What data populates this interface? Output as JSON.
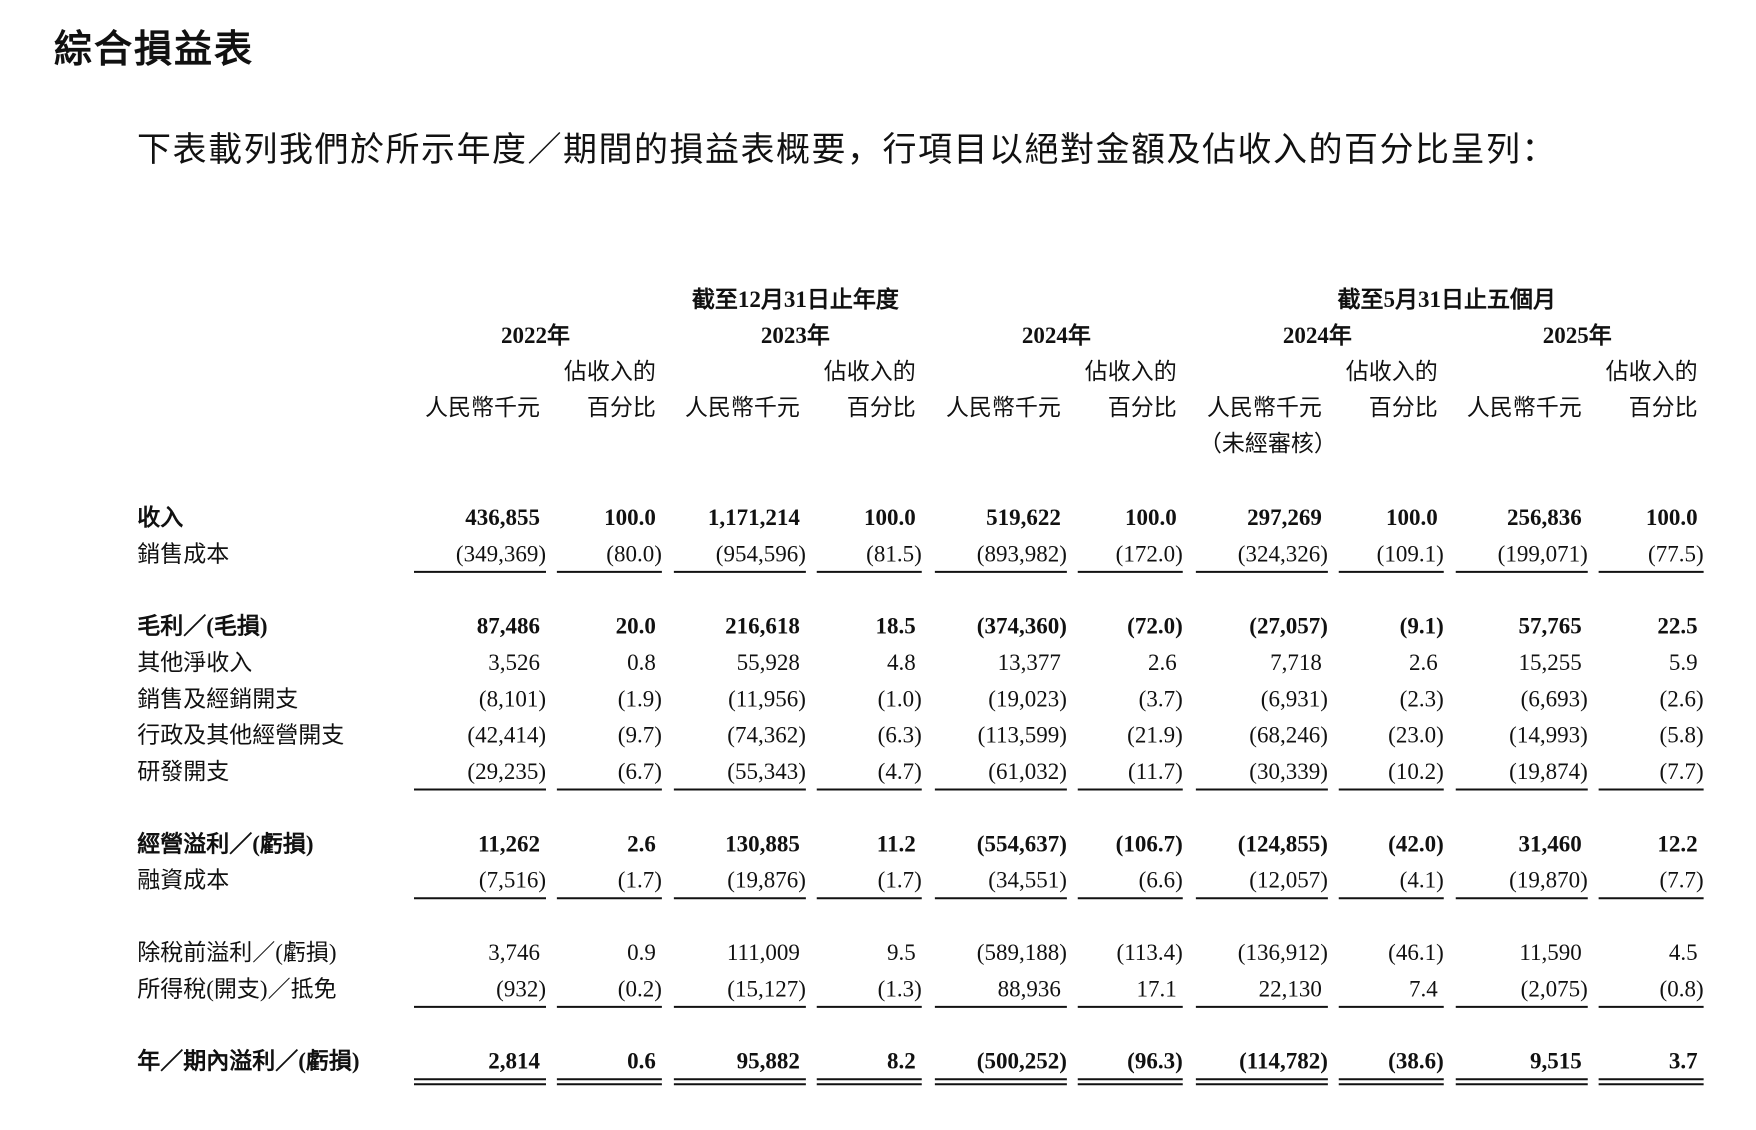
{
  "heading": "綜合損益表",
  "intro": "下表載列我們於所示年度／期間的損益表概要，行項目以絕對金額及佔收入的百分比呈列：",
  "table": {
    "group_headers": [
      {
        "text": "截至12月31日止年度",
        "span": [
          0,
          2
        ]
      },
      {
        "text": "截至5月31日止五個月",
        "span": [
          3,
          4
        ]
      }
    ],
    "columns": [
      {
        "year": "2022年",
        "amount_label": "人民幣千元",
        "pct_label_1": "佔收入的",
        "pct_label_2": "百分比"
      },
      {
        "year": "2023年",
        "amount_label": "人民幣千元",
        "pct_label_1": "佔收入的",
        "pct_label_2": "百分比"
      },
      {
        "year": "2024年",
        "amount_label": "人民幣千元",
        "pct_label_1": "佔收入的",
        "pct_label_2": "百分比"
      },
      {
        "year": "2024年",
        "amount_label": "人民幣千元",
        "pct_label_1": "佔收入的",
        "pct_label_2": "百分比",
        "note": "（未經審核）"
      },
      {
        "year": "2025年",
        "amount_label": "人民幣千元",
        "pct_label_1": "佔收入的",
        "pct_label_2": "百分比"
      }
    ],
    "sections": [
      [
        {
          "label": "收入",
          "bold": true,
          "cells": [
            "436,855",
            "100.0",
            "1,171,214",
            "100.0",
            "519,622",
            "100.0",
            "297,269",
            "100.0",
            "256,836",
            "100.0"
          ]
        },
        {
          "label": "銷售成本",
          "bold": false,
          "cells": [
            "(349,369)",
            "(80.0)",
            "(954,596)",
            "(81.5)",
            "(893,982)",
            "(172.0)",
            "(324,326)",
            "(109.1)",
            "(199,071)",
            "(77.5)"
          ]
        }
      ],
      [
        {
          "label": "毛利／(毛損)",
          "bold": true,
          "cells": [
            "87,486",
            "20.0",
            "216,618",
            "18.5",
            "(374,360)",
            "(72.0)",
            "(27,057)",
            "(9.1)",
            "57,765",
            "22.5"
          ]
        },
        {
          "label": "其他淨收入",
          "bold": false,
          "cells": [
            "3,526",
            "0.8",
            "55,928",
            "4.8",
            "13,377",
            "2.6",
            "7,718",
            "2.6",
            "15,255",
            "5.9"
          ]
        },
        {
          "label": "銷售及經銷開支",
          "bold": false,
          "cells": [
            "(8,101)",
            "(1.9)",
            "(11,956)",
            "(1.0)",
            "(19,023)",
            "(3.7)",
            "(6,931)",
            "(2.3)",
            "(6,693)",
            "(2.6)"
          ]
        },
        {
          "label": "行政及其他經營開支",
          "bold": false,
          "cells": [
            "(42,414)",
            "(9.7)",
            "(74,362)",
            "(6.3)",
            "(113,599)",
            "(21.9)",
            "(68,246)",
            "(23.0)",
            "(14,993)",
            "(5.8)"
          ]
        },
        {
          "label": "研發開支",
          "bold": false,
          "cells": [
            "(29,235)",
            "(6.7)",
            "(55,343)",
            "(4.7)",
            "(61,032)",
            "(11.7)",
            "(30,339)",
            "(10.2)",
            "(19,874)",
            "(7.7)"
          ]
        }
      ],
      [
        {
          "label": "經營溢利／(虧損)",
          "bold": true,
          "cells": [
            "11,262",
            "2.6",
            "130,885",
            "11.2",
            "(554,637)",
            "(106.7)",
            "(124,855)",
            "(42.0)",
            "31,460",
            "12.2"
          ]
        },
        {
          "label": "融資成本",
          "bold": false,
          "cells": [
            "(7,516)",
            "(1.7)",
            "(19,876)",
            "(1.7)",
            "(34,551)",
            "(6.6)",
            "(12,057)",
            "(4.1)",
            "(19,870)",
            "(7.7)"
          ]
        }
      ],
      [
        {
          "label": "除稅前溢利／(虧損)",
          "bold": false,
          "cells": [
            "3,746",
            "0.9",
            "111,009",
            "9.5",
            "(589,188)",
            "(113.4)",
            "(136,912)",
            "(46.1)",
            "11,590",
            "4.5"
          ]
        },
        {
          "label": "所得稅(開支)／抵免",
          "bold": false,
          "cells": [
            "(932)",
            "(0.2)",
            "(15,127)",
            "(1.3)",
            "88,936",
            "17.1",
            "22,130",
            "7.4",
            "(2,075)",
            "(0.8)"
          ]
        }
      ],
      [
        {
          "label": "年／期內溢利／(虧損)",
          "bold": true,
          "cells": [
            "2,814",
            "0.6",
            "95,882",
            "8.2",
            "(500,252)",
            "(96.3)",
            "(114,782)",
            "(38.6)",
            "9,515",
            "3.7"
          ]
        }
      ]
    ]
  }
}
